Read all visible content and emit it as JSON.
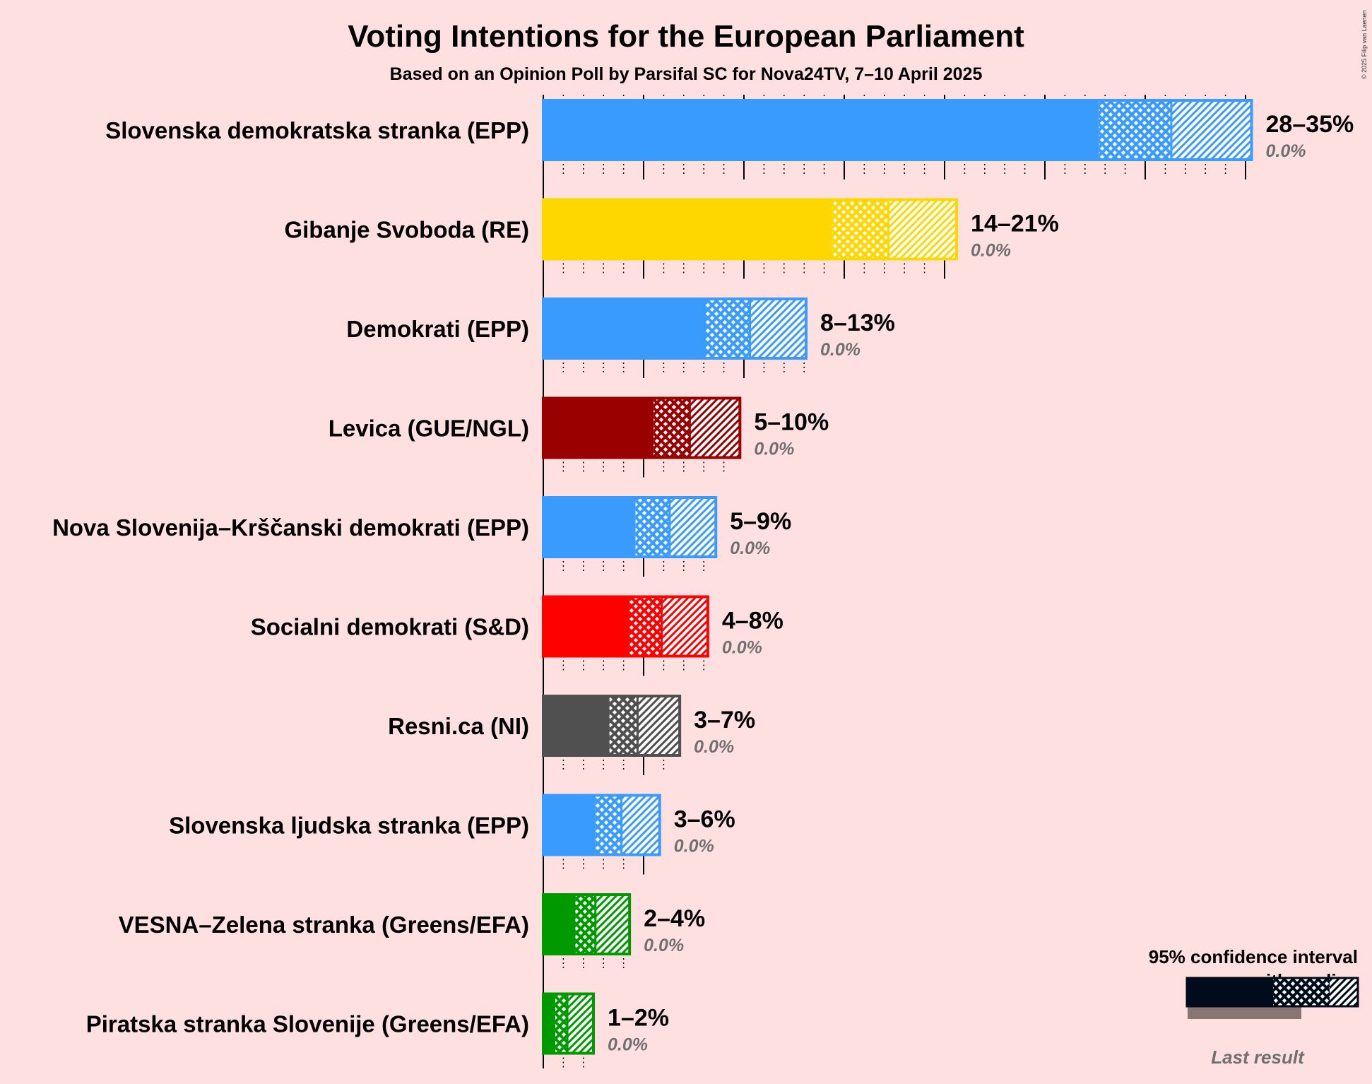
{
  "title": "Voting Intentions for the European Parliament",
  "subtitle": "Based on an Opinion Poll by Parsifal SC for Nova24TV, 7–10 April 2025",
  "copyright": "© 2025 Filip van Laenen",
  "legend": {
    "line1": "95% confidence interval",
    "line2": "with median",
    "last_result": "Last result",
    "colors": {
      "interval": "#000C1C",
      "last": "#8A7575"
    }
  },
  "chart_data": {
    "type": "bar",
    "orientation": "horizontal",
    "title": "Voting Intentions for the European Parliament",
    "xlim": [
      0,
      36
    ],
    "series": [
      {
        "party": "Slovenska demokratska stranka (EPP)",
        "color": "#3A9BFF",
        "ci_low": 27.7,
        "median": 31.3,
        "ci_high": 35.3,
        "range_label": "28–35%",
        "last_result_label": "0.0%",
        "last_result": 0.0,
        "ticks_max": 35
      },
      {
        "party": "Gibanje Svoboda (RE)",
        "color": "#FFD700",
        "ci_low": 14.4,
        "median": 17.2,
        "ci_high": 20.6,
        "range_label": "14–21%",
        "last_result_label": "0.0%",
        "last_result": 0.0,
        "ticks_max": 20
      },
      {
        "party": "Demokrati (EPP)",
        "color": "#3A9BFF",
        "ci_low": 8.1,
        "median": 10.3,
        "ci_high": 13.1,
        "range_label": "8–13%",
        "last_result_label": "0.0%",
        "last_result": 0.0,
        "ticks_max": 13
      },
      {
        "party": "Levica (GUE/NGL)",
        "color": "#990000",
        "ci_low": 5.5,
        "median": 7.3,
        "ci_high": 9.8,
        "range_label": "5–10%",
        "last_result_label": "0.0%",
        "last_result": 0.0,
        "ticks_max": 9
      },
      {
        "party": "Nova Slovenija–Krščanski demokrati (EPP)",
        "color": "#3A9BFF",
        "ci_low": 4.6,
        "median": 6.3,
        "ci_high": 8.6,
        "range_label": "5–9%",
        "last_result_label": "0.0%",
        "last_result": 0.0,
        "ticks_max": 8
      },
      {
        "party": "Socialni demokrati (S&D)",
        "color": "#FF0000",
        "ci_low": 4.3,
        "median": 5.9,
        "ci_high": 8.2,
        "range_label": "4–8%",
        "last_result_label": "0.0%",
        "last_result": 0.0,
        "ticks_max": 8
      },
      {
        "party": "Resni.ca (NI)",
        "color": "#505050",
        "ci_low": 3.3,
        "median": 4.7,
        "ci_high": 6.8,
        "range_label": "3–7%",
        "last_result_label": "0.0%",
        "last_result": 0.0,
        "ticks_max": 6
      },
      {
        "party": "Slovenska ljudska stranka (EPP)",
        "color": "#3A9BFF",
        "ci_low": 2.6,
        "median": 3.9,
        "ci_high": 5.8,
        "range_label": "3–6%",
        "last_result_label": "0.0%",
        "last_result": 0.0,
        "ticks_max": 5
      },
      {
        "party": "VESNA–Zelena stranka (Greens/EFA)",
        "color": "#009900",
        "ci_low": 1.6,
        "median": 2.6,
        "ci_high": 4.3,
        "range_label": "2–4%",
        "last_result_label": "0.0%",
        "last_result": 0.0,
        "ticks_max": 4
      },
      {
        "party": "Piratska stranka Slovenije (Greens/EFA)",
        "color": "#009900",
        "ci_low": 0.6,
        "median": 1.2,
        "ci_high": 2.5,
        "range_label": "1–2%",
        "last_result_label": "0.0%",
        "last_result": 0.0,
        "ticks_max": 2
      }
    ]
  }
}
